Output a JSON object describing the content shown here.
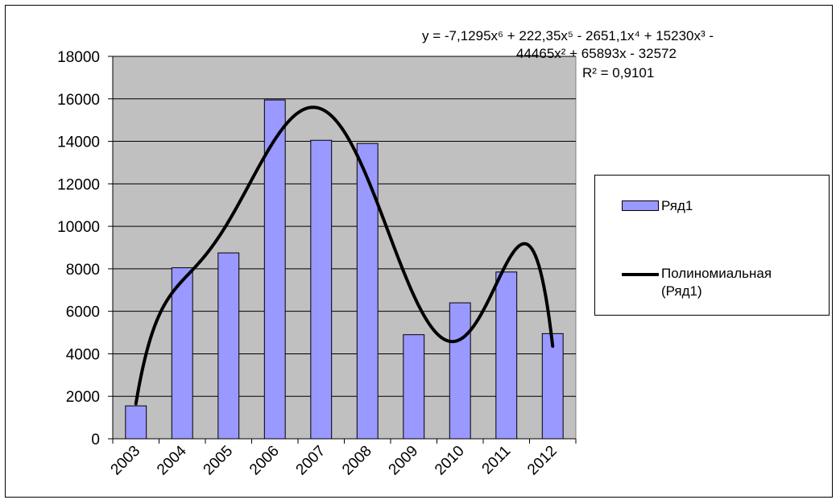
{
  "chart_data": {
    "type": "bar",
    "categories": [
      "2003",
      "2004",
      "2005",
      "2006",
      "2007",
      "2008",
      "2009",
      "2010",
      "2011",
      "2012"
    ],
    "series": [
      {
        "name": "Ряд1",
        "values": [
          1550,
          8050,
          8750,
          15950,
          14050,
          13900,
          4900,
          6400,
          7850,
          4950
        ],
        "color": "#9999ff"
      }
    ],
    "trendline": {
      "name_line1": "Полиномиальная",
      "name_line2": "(Ряд1)",
      "type": "polynomial",
      "order": 6,
      "color": "#000000",
      "coefficients": [
        -7.1295,
        222.35,
        -2651.1,
        15230,
        -44465,
        65893,
        -32572
      ],
      "equation_line1": "y = -7,1295x⁶ + 222,35x⁵ - 2651,1x⁴ + 15230x³ -",
      "equation_line2": "44465x² + 65893x - 32572",
      "r_squared_text": "R² = 0,9101"
    },
    "y_ticks": [
      "0",
      "2000",
      "4000",
      "6000",
      "8000",
      "10000",
      "12000",
      "14000",
      "16000",
      "18000"
    ],
    "ylim": [
      0,
      18000
    ],
    "y_step": 2000,
    "grid": true,
    "plot_background": "#c0c0c0",
    "legend_position": "right"
  }
}
